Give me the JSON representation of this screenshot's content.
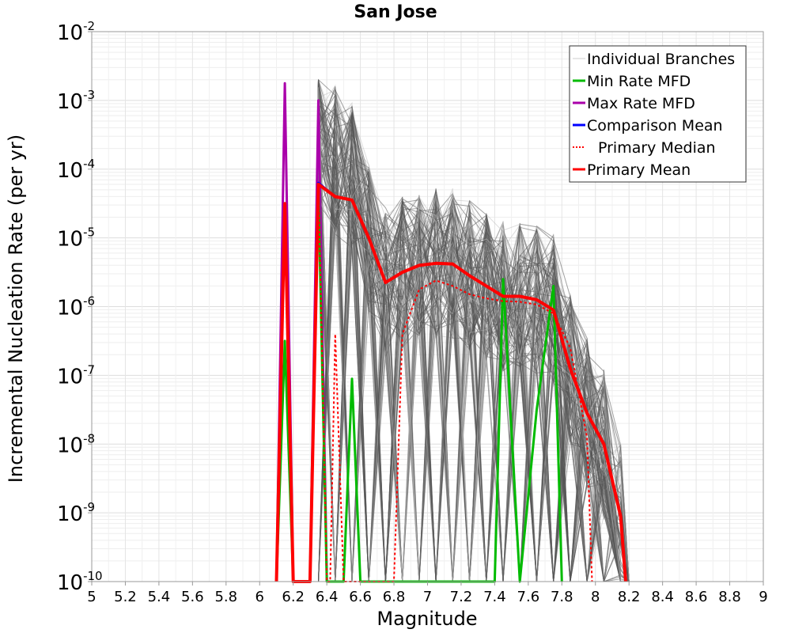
{
  "chart_data": {
    "type": "line",
    "title": "San Jose",
    "xlabel": "Magnitude",
    "ylabel": "Incremental Nucleation Rate (per yr)",
    "xlim": [
      5,
      9
    ],
    "ylim_log10": [
      -10,
      -2
    ],
    "yscale": "log",
    "grid": true,
    "legend_position": "top-right",
    "x_ticks": [
      "5",
      "5.2",
      "5.4",
      "5.6",
      "5.8",
      "6",
      "6.2",
      "6.4",
      "6.6",
      "6.8",
      "7",
      "7.2",
      "7.4",
      "7.6",
      "7.8",
      "8",
      "8.2",
      "8.4",
      "8.6",
      "8.8",
      "9"
    ],
    "y_ticks": [
      {
        "base": "10",
        "exp": "-10"
      },
      {
        "base": "10",
        "exp": "-9"
      },
      {
        "base": "10",
        "exp": "-8"
      },
      {
        "base": "10",
        "exp": "-7"
      },
      {
        "base": "10",
        "exp": "-6"
      },
      {
        "base": "10",
        "exp": "-5"
      },
      {
        "base": "10",
        "exp": "-4"
      },
      {
        "base": "10",
        "exp": "-3"
      },
      {
        "base": "10",
        "exp": "-2"
      }
    ],
    "legend": [
      {
        "name": "Individual Branches",
        "color": "#cccccc",
        "style": "solid"
      },
      {
        "name": "Min Rate MFD",
        "color": "#00bb00",
        "style": "solid"
      },
      {
        "name": "Max Rate MFD",
        "color": "#aa00aa",
        "style": "solid"
      },
      {
        "name": "Comparison Mean",
        "color": "#0000ff",
        "style": "solid"
      },
      {
        "name": "Primary Median",
        "color": "#ff0000",
        "style": "dotted"
      },
      {
        "name": "Primary Mean",
        "color": "#ff0000",
        "style": "solid"
      }
    ],
    "series": [
      {
        "name": "Max Rate MFD",
        "color": "#aa00aa",
        "width": 3,
        "dash": "",
        "points": [
          [
            6.1,
            -10
          ],
          [
            6.15,
            -2.75
          ],
          [
            6.2,
            -10
          ],
          [
            6.3,
            -10
          ],
          [
            6.35,
            -3.0
          ],
          [
            6.4,
            -10
          ]
        ]
      },
      {
        "name": "Min Rate MFD",
        "color": "#00bb00",
        "width": 3,
        "dash": "",
        "points": [
          [
            6.1,
            -10
          ],
          [
            6.15,
            -6.5
          ],
          [
            6.2,
            -10
          ],
          [
            6.3,
            -10
          ],
          [
            6.35,
            -4.3
          ],
          [
            6.4,
            -10
          ],
          [
            6.5,
            -10
          ],
          [
            6.55,
            -7.05
          ],
          [
            6.6,
            -10
          ],
          [
            7.4,
            -10
          ],
          [
            7.45,
            -5.6
          ],
          [
            7.55,
            -10
          ],
          [
            7.65,
            -7.5
          ],
          [
            7.75,
            -5.7
          ],
          [
            7.8,
            -10
          ]
        ]
      },
      {
        "name": "Comparison Mean",
        "color": "#0000ff",
        "width": 3,
        "dash": "",
        "points": [
          [
            6.1,
            -10
          ],
          [
            6.15,
            -4.5
          ],
          [
            6.2,
            -10
          ],
          [
            6.3,
            -10
          ],
          [
            6.35,
            -4.2
          ],
          [
            6.45,
            -4.4
          ],
          [
            6.55,
            -4.45
          ],
          [
            6.65,
            -5.0
          ],
          [
            6.75,
            -5.65
          ],
          [
            6.85,
            -5.5
          ],
          [
            6.95,
            -5.4
          ],
          [
            7.05,
            -5.37
          ],
          [
            7.15,
            -5.38
          ],
          [
            7.25,
            -5.55
          ],
          [
            7.35,
            -5.7
          ],
          [
            7.45,
            -5.85
          ],
          [
            7.55,
            -5.85
          ],
          [
            7.65,
            -5.9
          ],
          [
            7.75,
            -6.05
          ],
          [
            7.85,
            -6.9
          ],
          [
            7.95,
            -7.55
          ],
          [
            8.05,
            -8.0
          ],
          [
            8.15,
            -9.05
          ],
          [
            8.18,
            -10
          ]
        ]
      },
      {
        "name": "Primary Median",
        "color": "#ff0000",
        "width": 2,
        "dash": "3,3",
        "points": [
          [
            6.1,
            -10
          ],
          [
            6.15,
            -4.5
          ],
          [
            6.2,
            -10
          ],
          [
            6.3,
            -10
          ],
          [
            6.35,
            -4.2
          ],
          [
            6.4,
            -10
          ],
          [
            6.42,
            -10
          ],
          [
            6.45,
            -6.4
          ],
          [
            6.5,
            -10
          ],
          [
            6.8,
            -10
          ],
          [
            6.85,
            -6.4
          ],
          [
            6.95,
            -5.75
          ],
          [
            7.05,
            -5.62
          ],
          [
            7.15,
            -5.7
          ],
          [
            7.25,
            -5.82
          ],
          [
            7.35,
            -5.88
          ],
          [
            7.45,
            -5.92
          ],
          [
            7.55,
            -5.93
          ],
          [
            7.65,
            -5.97
          ],
          [
            7.75,
            -6.1
          ],
          [
            7.85,
            -6.6
          ],
          [
            7.95,
            -7.9
          ],
          [
            7.98,
            -10
          ]
        ]
      },
      {
        "name": "Primary Mean",
        "color": "#ff0000",
        "width": 4,
        "dash": "",
        "points": [
          [
            6.1,
            -10
          ],
          [
            6.15,
            -4.5
          ],
          [
            6.2,
            -10
          ],
          [
            6.3,
            -10
          ],
          [
            6.35,
            -4.22
          ],
          [
            6.45,
            -4.4
          ],
          [
            6.55,
            -4.45
          ],
          [
            6.65,
            -5.0
          ],
          [
            6.75,
            -5.65
          ],
          [
            6.85,
            -5.5
          ],
          [
            6.95,
            -5.4
          ],
          [
            7.05,
            -5.37
          ],
          [
            7.15,
            -5.38
          ],
          [
            7.25,
            -5.55
          ],
          [
            7.35,
            -5.7
          ],
          [
            7.45,
            -5.85
          ],
          [
            7.55,
            -5.85
          ],
          [
            7.65,
            -5.9
          ],
          [
            7.75,
            -6.05
          ],
          [
            7.85,
            -6.9
          ],
          [
            7.95,
            -7.55
          ],
          [
            8.05,
            -8.0
          ],
          [
            8.15,
            -9.05
          ],
          [
            8.18,
            -10
          ]
        ]
      }
    ]
  }
}
